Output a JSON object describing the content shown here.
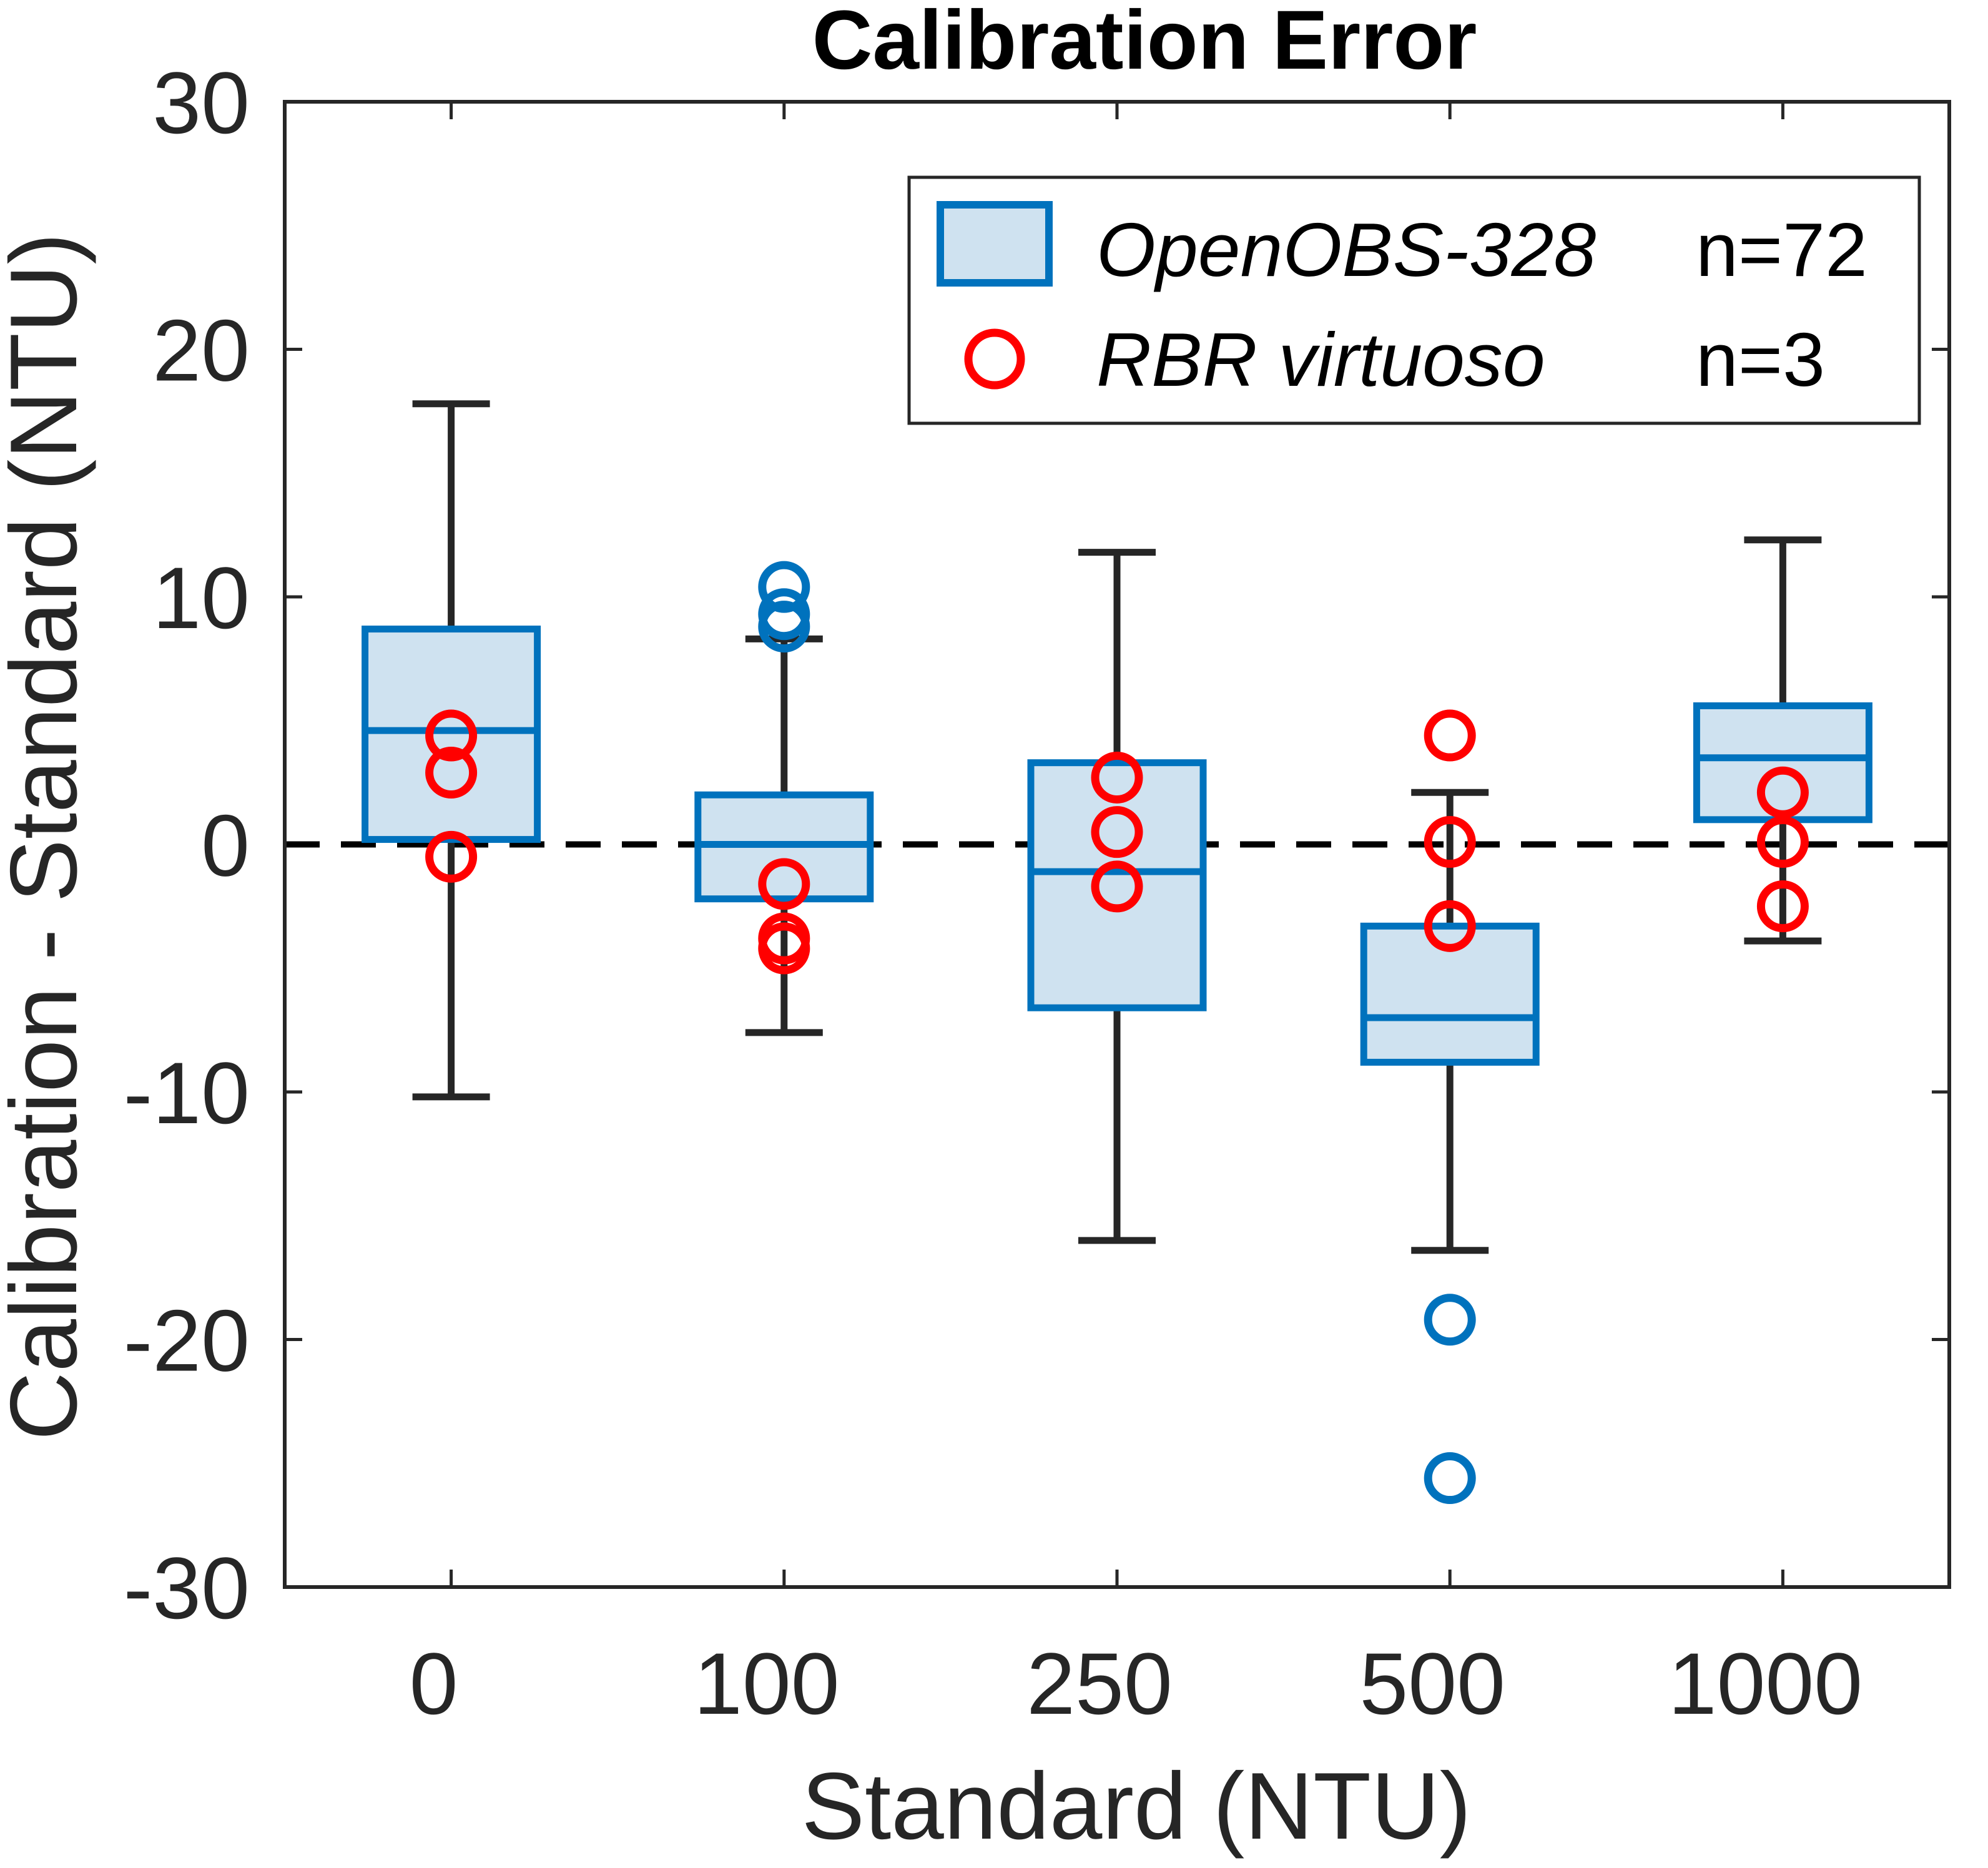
{
  "chart_data": {
    "type": "box",
    "title": "Calibration Error",
    "xlabel": "Standard (NTU)",
    "ylabel": "Calibration - Standard (NTU)",
    "categories": [
      "0",
      "100",
      "250",
      "500",
      "1000"
    ],
    "ylim": [
      -30,
      30
    ],
    "yticks": [
      -30,
      -20,
      -10,
      0,
      10,
      20,
      30
    ],
    "reference_line": {
      "y": 0,
      "style": "dashed",
      "color": "#000000"
    },
    "legend": {
      "position": "top-right",
      "entries": [
        {
          "series": "OpenOBS-328",
          "count": "n=72",
          "marker": "box"
        },
        {
          "series": "RBR virtuoso",
          "count": "n=3",
          "marker": "circle"
        }
      ]
    },
    "series": [
      {
        "name": "OpenOBS-328",
        "count_label": "n=72",
        "kind": "boxplot",
        "color": "#0072BD",
        "fill": "#CFE2F0",
        "whisker_color": "#262626",
        "boxes": [
          {
            "category": "0",
            "whisker_low": -10.2,
            "q1": 0.2,
            "median": 4.6,
            "q3": 8.7,
            "whisker_high": 17.8,
            "outliers": []
          },
          {
            "category": "100",
            "whisker_low": -7.6,
            "q1": -2.2,
            "median": 0.0,
            "q3": 2.0,
            "whisker_high": 8.3,
            "outliers": [
              10.4,
              9.3,
              8.8
            ]
          },
          {
            "category": "250",
            "whisker_low": -16.0,
            "q1": -6.6,
            "median": -1.1,
            "q3": 3.3,
            "whisker_high": 11.8,
            "outliers": []
          },
          {
            "category": "500",
            "whisker_low": -16.4,
            "q1": -8.8,
            "median": -7.0,
            "q3": -3.3,
            "whisker_high": 2.1,
            "outliers": [
              -19.2,
              -25.6
            ]
          },
          {
            "category": "1000",
            "whisker_low": -3.9,
            "q1": 1.0,
            "median": 3.5,
            "q3": 5.6,
            "whisker_high": 12.3,
            "outliers": []
          }
        ]
      },
      {
        "name": "RBR virtuoso",
        "count_label": "n=3",
        "kind": "scatter",
        "marker": "circle",
        "color": "#FF0000",
        "points": [
          {
            "category": "0",
            "values": [
              4.4,
              2.9,
              -0.5
            ]
          },
          {
            "category": "100",
            "values": [
              -1.6,
              -3.8,
              -4.2
            ]
          },
          {
            "category": "250",
            "values": [
              2.7,
              0.5,
              -1.7
            ]
          },
          {
            "category": "500",
            "values": [
              4.4,
              0.1,
              -3.3
            ]
          },
          {
            "category": "1000",
            "values": [
              2.1,
              0.1,
              -2.5
            ]
          }
        ]
      }
    ]
  }
}
